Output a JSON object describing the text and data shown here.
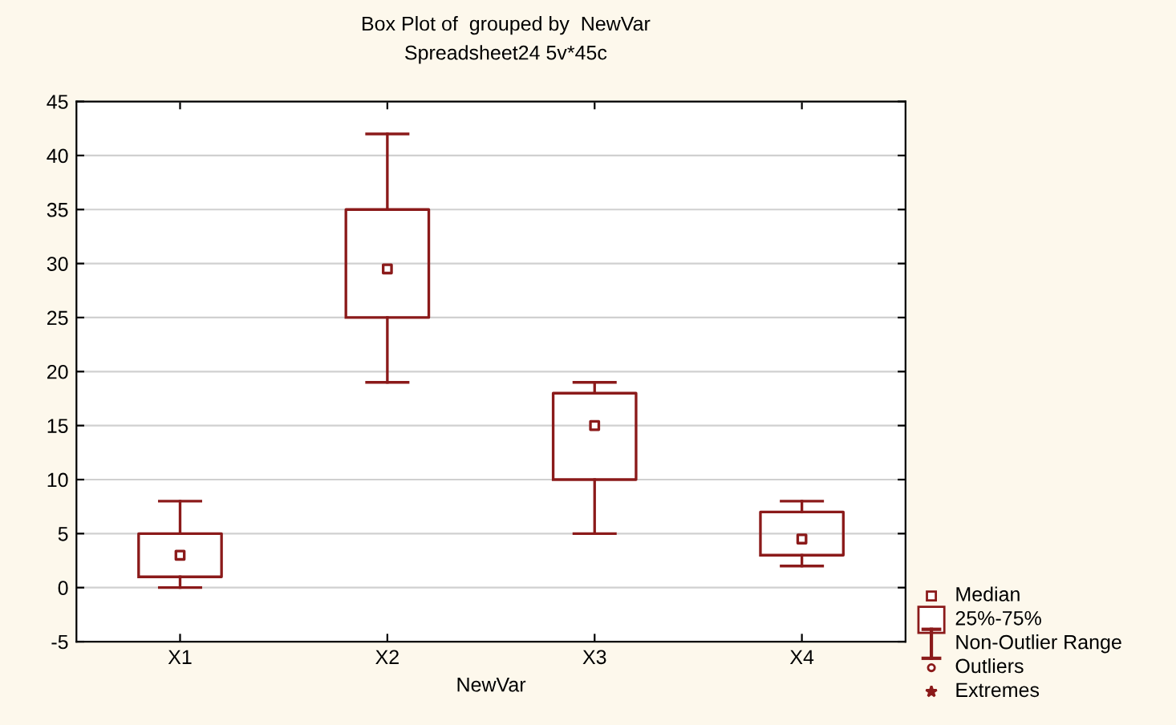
{
  "chart_data": {
    "type": "box",
    "title": "Box Plot of  grouped by  NewVar",
    "subtitle": "Spreadsheet24 5v*45c",
    "xlabel": "NewVar",
    "categories": [
      "X1",
      "X2",
      "X3",
      "X4"
    ],
    "color": "#8b1a1a",
    "boxes": [
      {
        "low": 0,
        "q1": 1,
        "median": 3,
        "q3": 5,
        "high": 8
      },
      {
        "low": 19,
        "q1": 25,
        "median": 29.5,
        "q3": 35,
        "high": 42
      },
      {
        "low": 5,
        "q1": 10,
        "median": 15,
        "q3": 18,
        "high": 19
      },
      {
        "low": 2,
        "q1": 3,
        "median": 4.5,
        "q3": 7,
        "high": 8
      }
    ],
    "ylim": [
      -5,
      45
    ],
    "yticks": [
      -5,
      0,
      5,
      10,
      15,
      20,
      25,
      30,
      35,
      40,
      45
    ],
    "grid": "y",
    "annotations": [
      "Median",
      "25%-75%",
      "Non-Outlier Range",
      "Outliers",
      "Extremes"
    ]
  }
}
